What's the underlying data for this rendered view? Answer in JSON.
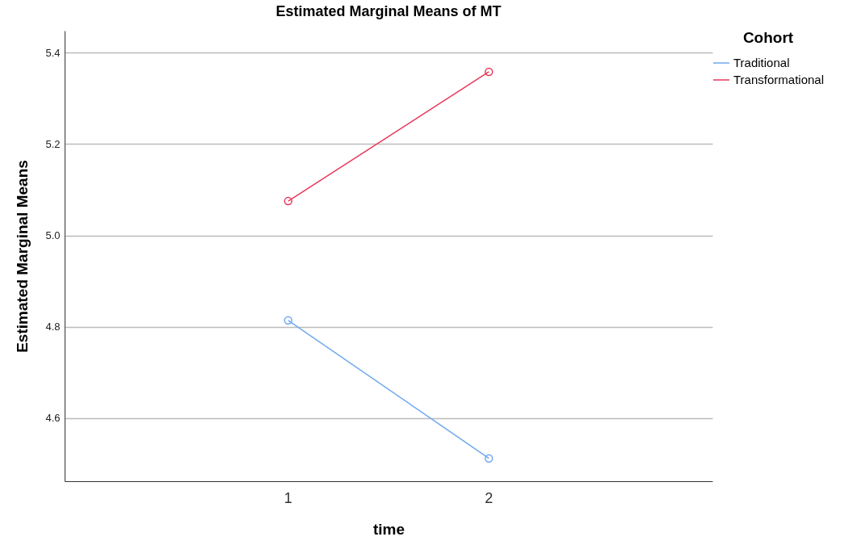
{
  "chart_data": {
    "type": "line",
    "title": "Estimated Marginal Means of MT",
    "xlabel": "time",
    "ylabel": "Estimated Marginal Means",
    "legend_title": "Cohort",
    "categories": [
      "1",
      "2"
    ],
    "series": [
      {
        "name": "Traditional",
        "color": "#6fa8ef",
        "values": [
          4.814,
          4.512
        ]
      },
      {
        "name": "Transformational",
        "color": "#e8375a",
        "values": [
          5.075,
          5.358
        ]
      }
    ],
    "ylim": [
      4.462,
      5.448
    ],
    "yticks": [
      4.6,
      4.8,
      {
        "value": 5.0,
        "label": "5.0"
      },
      5.2,
      5.4
    ],
    "grid": "y",
    "legend": "top right",
    "marker": "circle",
    "line_style": "solid"
  }
}
